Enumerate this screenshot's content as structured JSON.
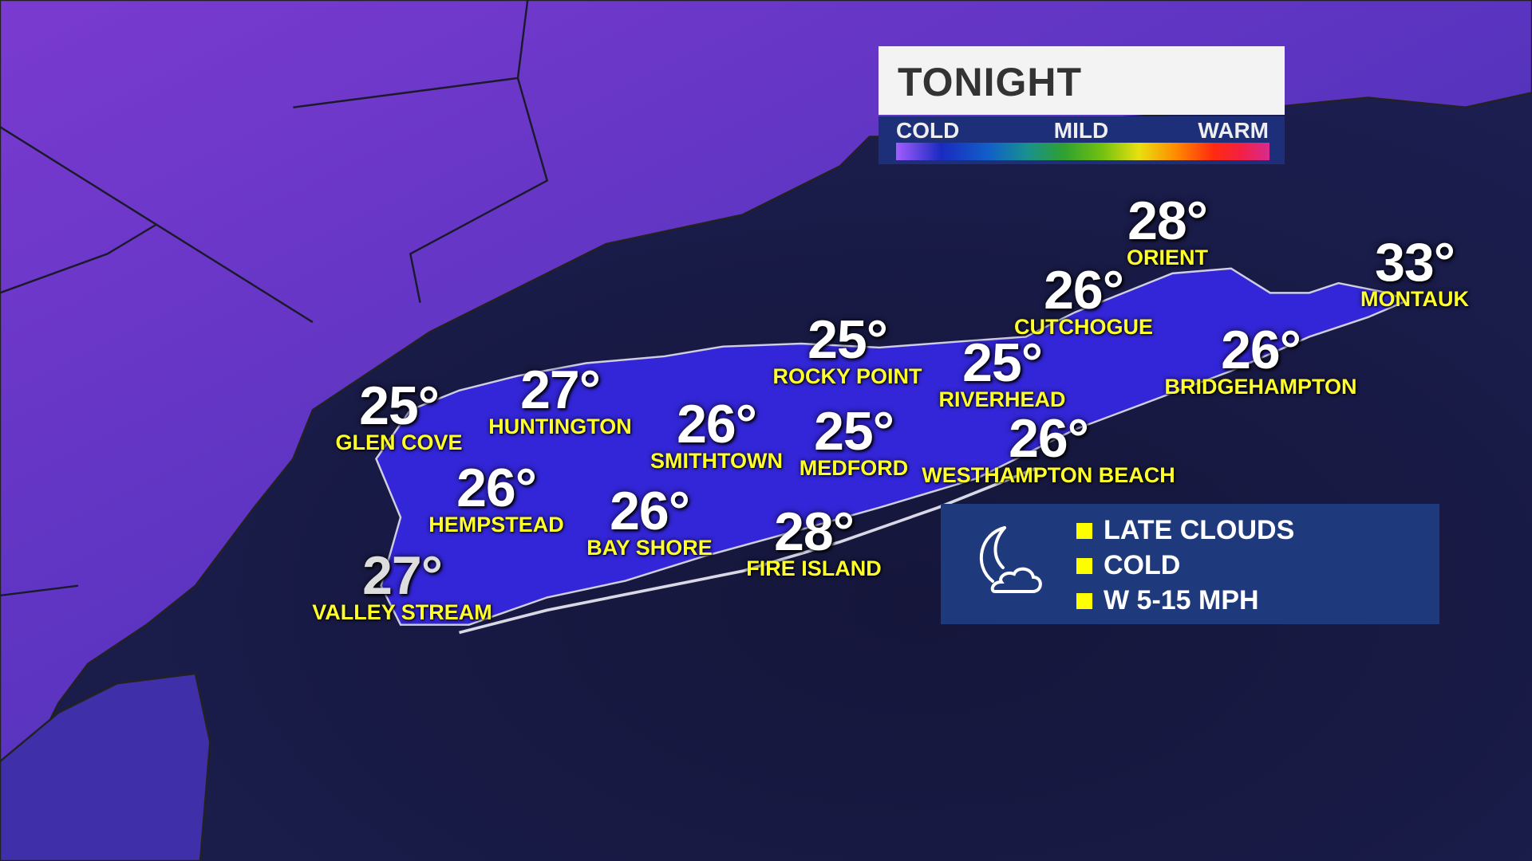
{
  "header": {
    "title": "TONIGHT"
  },
  "temperature_scale": {
    "low_label": "COLD",
    "mid_label": "MILD",
    "high_label": "WARM",
    "colors": [
      "#a35cff",
      "#1a2ac0",
      "#1160c8",
      "#189090",
      "#30a030",
      "#70c010",
      "#e8e010",
      "#ff8a00",
      "#ff2a10",
      "#d82a90"
    ]
  },
  "cities": [
    {
      "name": "GLEN COVE",
      "temp": "25°"
    },
    {
      "name": "HUNTINGTON",
      "temp": "27°"
    },
    {
      "name": "HEMPSTEAD",
      "temp": "26°"
    },
    {
      "name": "VALLEY STREAM",
      "temp": "27°"
    },
    {
      "name": "SMITHTOWN",
      "temp": "26°"
    },
    {
      "name": "BAY SHORE",
      "temp": "26°"
    },
    {
      "name": "ROCKY POINT",
      "temp": "25°"
    },
    {
      "name": "MEDFORD",
      "temp": "25°"
    },
    {
      "name": "FIRE ISLAND",
      "temp": "28°"
    },
    {
      "name": "RIVERHEAD",
      "temp": "25°"
    },
    {
      "name": "WESTHAMPTON BEACH",
      "temp": "26°"
    },
    {
      "name": "CUTCHOGUE",
      "temp": "26°"
    },
    {
      "name": "ORIENT",
      "temp": "28°"
    },
    {
      "name": "BRIDGEHAMPTON",
      "temp": "26°"
    },
    {
      "name": "MONTAUK",
      "temp": "33°"
    }
  ],
  "forecast": {
    "icon": "moon-cloud-icon",
    "items": [
      "LATE CLOUDS",
      "COLD",
      "W 5-15 MPH"
    ]
  }
}
